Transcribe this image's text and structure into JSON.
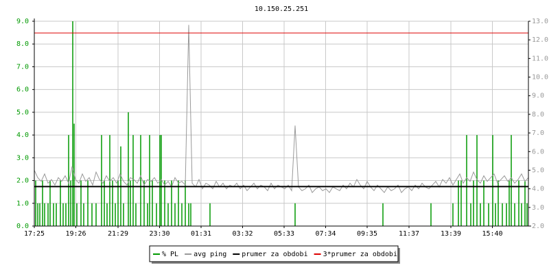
{
  "chart_data": {
    "type": "line",
    "title": "10.150.25.251",
    "xlim": [
      0,
      1440
    ],
    "xticks": [
      {
        "value": 0,
        "label": "17:25"
      },
      {
        "value": 121,
        "label": "19:26"
      },
      {
        "value": 244,
        "label": "21:29"
      },
      {
        "value": 365,
        "label": "23:30"
      },
      {
        "value": 486,
        "label": "01:31"
      },
      {
        "value": 607,
        "label": "03:32"
      },
      {
        "value": 728,
        "label": "05:33"
      },
      {
        "value": 849,
        "label": "07:34"
      },
      {
        "value": 970,
        "label": "09:35"
      },
      {
        "value": 1092,
        "label": "11:37"
      },
      {
        "value": 1214,
        "label": "13:39"
      },
      {
        "value": 1335,
        "label": "15:40"
      }
    ],
    "ylim": [
      0,
      9
    ],
    "yticks": [
      {
        "value": 0,
        "label": "0.0"
      },
      {
        "value": 1,
        "label": "1.0"
      },
      {
        "value": 2,
        "label": "2.0"
      },
      {
        "value": 3,
        "label": "3.0"
      },
      {
        "value": 4,
        "label": "4.0"
      },
      {
        "value": 5,
        "label": "5.0"
      },
      {
        "value": 6,
        "label": "6.0"
      },
      {
        "value": 7,
        "label": "7.0"
      },
      {
        "value": 8,
        "label": "8.0"
      },
      {
        "value": 9,
        "label": "9.0"
      }
    ],
    "y2lim": [
      2,
      13
    ],
    "y2ticks": [
      {
        "value": 2,
        "label": "2.0"
      },
      {
        "value": 3,
        "label": "3.0"
      },
      {
        "value": 4,
        "label": "4.0"
      },
      {
        "value": 5,
        "label": "5.0"
      },
      {
        "value": 6,
        "label": "6.0"
      },
      {
        "value": 7,
        "label": "7.0"
      },
      {
        "value": 8,
        "label": "8.0"
      },
      {
        "value": 9,
        "label": "9.0"
      },
      {
        "value": 10,
        "label": "10.0"
      },
      {
        "value": 11,
        "label": "11.0"
      },
      {
        "value": 12,
        "label": "12.0"
      },
      {
        "value": 13,
        "label": "13.0"
      }
    ],
    "grid": true,
    "series": [
      {
        "name": "% PL",
        "color": "#009900",
        "kind": "spikes",
        "x": [
          4,
          10,
          16,
          24,
          30,
          40,
          46,
          56,
          64,
          76,
          84,
          92,
          100,
          106,
          112,
          116,
          124,
          136,
          144,
          156,
          168,
          180,
          196,
          204,
          212,
          220,
          228,
          236,
          244,
          252,
          260,
          274,
          280,
          288,
          296,
          310,
          320,
          330,
          336,
          344,
          356,
          366,
          370,
          380,
          390,
          400,
          410,
          420,
          430,
          440,
          450,
          456,
          512,
          760,
          1016,
          1156,
          1220,
          1236,
          1244,
          1260,
          1272,
          1280,
          1290,
          1300,
          1310,
          1324,
          1336,
          1344,
          1352,
          1364,
          1376,
          1384,
          1390,
          1400,
          1412,
          1420,
          1430,
          1436
        ],
        "values": [
          2,
          1,
          1,
          2,
          1,
          1,
          2,
          1,
          1,
          2,
          1,
          1,
          4,
          2,
          9,
          4.5,
          1,
          2,
          1,
          2,
          1,
          1,
          4,
          2,
          1,
          4,
          2,
          1,
          2,
          3.5,
          1,
          5,
          2,
          4,
          1,
          4,
          2,
          1,
          4,
          2,
          1,
          4,
          4,
          2,
          1,
          2,
          1,
          2,
          1,
          2,
          1,
          1,
          1,
          1,
          1,
          1,
          1,
          2,
          2,
          4,
          1,
          2,
          4,
          1,
          2,
          1,
          4,
          1,
          2,
          1,
          1,
          2,
          4,
          1,
          2,
          1,
          2,
          1
        ]
      },
      {
        "name": "avg ping",
        "color": "#999999",
        "axis": "y2",
        "kind": "line",
        "x": [
          0,
          10,
          20,
          30,
          40,
          50,
          60,
          70,
          80,
          90,
          100,
          110,
          120,
          130,
          140,
          150,
          160,
          170,
          180,
          190,
          200,
          210,
          220,
          230,
          240,
          250,
          260,
          270,
          280,
          290,
          300,
          310,
          320,
          330,
          340,
          350,
          360,
          370,
          380,
          390,
          400,
          410,
          420,
          430,
          440,
          450,
          460,
          470,
          480,
          490,
          500,
          510,
          520,
          530,
          540,
          550,
          560,
          570,
          580,
          590,
          600,
          610,
          620,
          630,
          640,
          650,
          660,
          670,
          680,
          690,
          700,
          710,
          720,
          730,
          740,
          750,
          760,
          770,
          780,
          790,
          800,
          810,
          820,
          830,
          840,
          850,
          860,
          870,
          880,
          890,
          900,
          910,
          920,
          930,
          940,
          950,
          960,
          970,
          980,
          990,
          1000,
          1010,
          1020,
          1030,
          1040,
          1050,
          1060,
          1070,
          1080,
          1090,
          1100,
          1110,
          1120,
          1130,
          1140,
          1150,
          1160,
          1170,
          1180,
          1190,
          1200,
          1210,
          1220,
          1230,
          1240,
          1250,
          1260,
          1270,
          1280,
          1290,
          1300,
          1310,
          1320,
          1330,
          1340,
          1350,
          1360,
          1370,
          1380,
          1390,
          1400,
          1410,
          1420,
          1430,
          1440
        ],
        "values": [
          5.0,
          4.6,
          4.4,
          4.8,
          4.3,
          4.5,
          4.2,
          4.6,
          4.4,
          4.7,
          4.3,
          5.2,
          4.5,
          4.3,
          4.8,
          4.4,
          4.6,
          4.2,
          4.9,
          4.5,
          4.3,
          4.7,
          4.4,
          4.6,
          4.3,
          4.8,
          4.4,
          4.2,
          4.6,
          4.5,
          4.3,
          4.7,
          4.2,
          4.5,
          4.4,
          4.6,
          4.3,
          4.5,
          4.2,
          4.4,
          4.1,
          4.6,
          4.3,
          4.4,
          4.2,
          12.8,
          4.3,
          4.1,
          4.5,
          4.0,
          4.3,
          4.2,
          4.0,
          4.4,
          4.1,
          4.3,
          4.0,
          4.2,
          4.1,
          4.3,
          4.0,
          4.2,
          3.9,
          4.1,
          4.3,
          4.0,
          4.2,
          4.1,
          3.9,
          4.3,
          4.0,
          4.2,
          4.1,
          4.0,
          4.2,
          3.9,
          7.4,
          4.1,
          3.9,
          4.0,
          4.2,
          3.8,
          4.0,
          4.1,
          3.9,
          4.0,
          3.8,
          4.1,
          4.0,
          3.9,
          4.2,
          4.0,
          4.3,
          4.1,
          4.5,
          4.2,
          4.0,
          4.4,
          4.1,
          3.9,
          4.2,
          4.0,
          3.8,
          4.1,
          3.9,
          4.0,
          4.2,
          3.8,
          4.0,
          4.1,
          3.9,
          4.2,
          4.0,
          4.3,
          4.1,
          4.0,
          4.2,
          4.4,
          4.1,
          4.5,
          4.3,
          4.6,
          4.2,
          4.5,
          4.8,
          4.3,
          4.6,
          4.4,
          4.9,
          4.5,
          4.3,
          4.7,
          4.4,
          4.6,
          4.8,
          4.3,
          4.5,
          4.7,
          4.4,
          4.6,
          4.3,
          4.5,
          4.8,
          4.4,
          4.6
        ]
      },
      {
        "name": "prumer za obdobi",
        "color": "#000000",
        "axis": "y2",
        "kind": "hline",
        "values": [
          4.12
        ]
      },
      {
        "name": "3*prumer za obdobi",
        "color": "#dd0000",
        "axis": "y2",
        "kind": "hline",
        "values": [
          12.37
        ]
      }
    ]
  }
}
